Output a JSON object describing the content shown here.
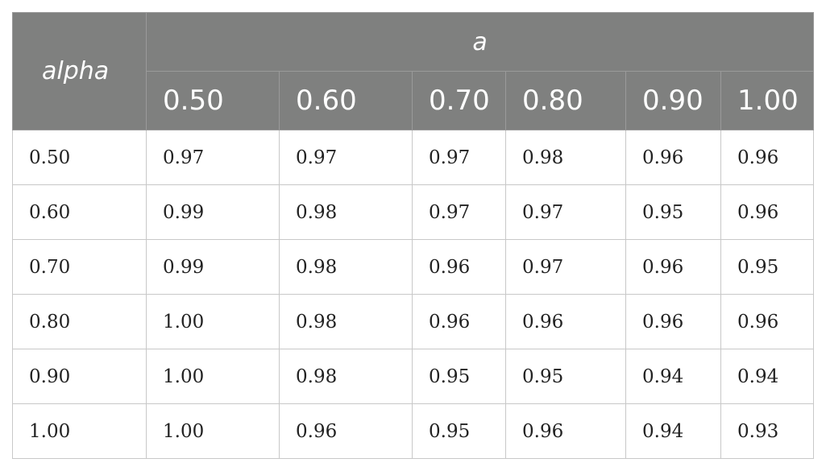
{
  "table": {
    "row_header_label": "alpha",
    "group_label": "a",
    "columns": [
      "0.50",
      "0.60",
      "0.70",
      "0.80",
      "0.90",
      "1.00"
    ],
    "rows": [
      {
        "label": "0.50",
        "values": [
          "0.97",
          "0.97",
          "0.97",
          "0.98",
          "0.96",
          "0.96"
        ]
      },
      {
        "label": "0.60",
        "values": [
          "0.99",
          "0.98",
          "0.97",
          "0.97",
          "0.95",
          "0.96"
        ]
      },
      {
        "label": "0.70",
        "values": [
          "0.99",
          "0.98",
          "0.96",
          "0.97",
          "0.96",
          "0.95"
        ]
      },
      {
        "label": "0.80",
        "values": [
          "1.00",
          "0.98",
          "0.96",
          "0.96",
          "0.96",
          "0.96"
        ]
      },
      {
        "label": "0.90",
        "values": [
          "1.00",
          "0.98",
          "0.95",
          "0.95",
          "0.94",
          "0.94"
        ]
      },
      {
        "label": "1.00",
        "values": [
          "1.00",
          "0.96",
          "0.95",
          "0.96",
          "0.94",
          "0.93"
        ]
      }
    ]
  }
}
